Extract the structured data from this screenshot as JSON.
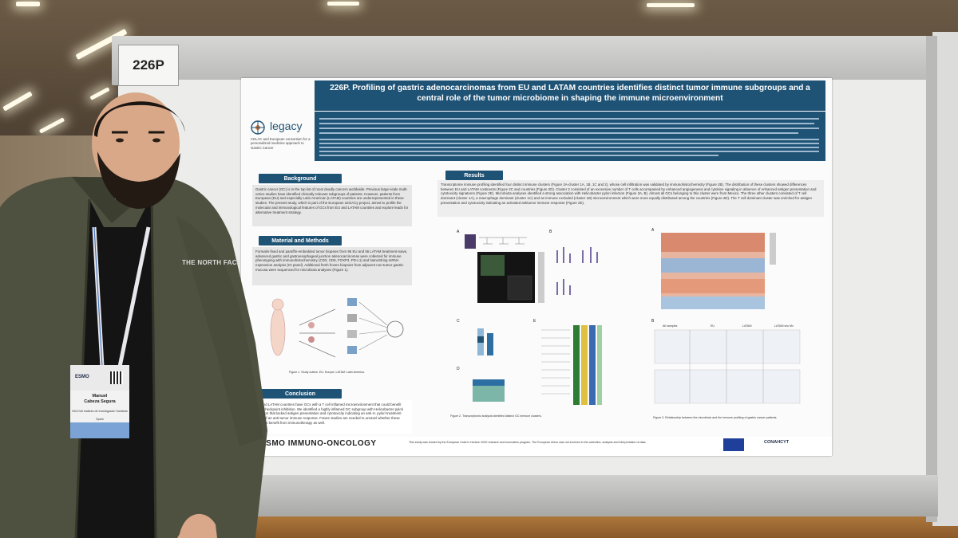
{
  "board": {
    "poster_number": "226P"
  },
  "poster": {
    "title": "226P. Profiling of gastric adenocarcinomas from EU and LATAM countries identifies distinct tumor immune subgroups and a central role of the tumor microbiome in shaping the immune microenvironment",
    "logo_name": "legacy",
    "logo_subtitle": "CELAC and European consortium for a personalized medicine approach to Gastric Cancer",
    "sections": {
      "background": "Background",
      "methods": "Material and Methods",
      "conclusion": "Conclusion",
      "results": "Results"
    },
    "background_text": "Gastric cancer (GC) is in the top list of most deadly cancers worldwide. Previous large-scale multi-omics studies have identified clinically relevant subgroups of patients. However, patients from European (EU) and especially Latin American (LATAM) countries are underrepresented in these studies. The present study, which is part of the European LEGACy project, aimed to profile the molecular and immunological features of GCs from EU and LATAM countries and explore leads for alternative treatment strategy.",
    "methods_text": "Formalin-fixed and paraffin-embedded tumor biopsies from 95 EU and 56 LATAM treatment-naive, advanced gastric and gastroesophageal junction adenocarcinomas were collected for immune phenotyping with immunohistochemistry (CD3, CD8, FOXP3, PD-L1) and NanoString mRNA expression analysis (IO panel). Additional fresh frozen biopsies from adjacent non-tumor gastric mucosa were sequenced for microbiota analyses (Figure 1).",
    "conclusion_text": "EU and LATAM countries have GCs with a T cell inflamed microenvironment that could benefit from checkpoint inhibition. We identified a highly inflamed GC subgroup with Helicobacter pylori infection that lacked antigen presentation and cytotoxicity indicating an anti-H. pylori treatment need of an anti-tumor immune response. Future studies are needed to unravel whether these cancers benefit from immunotherapy as well.",
    "results_text": "Transcriptome immune profiling identified four distinct immune clusters (Figure 2A-cluster 1A, 1B, 1C and 2), whose cell infiltration was validated by immunohistochemistry (Figure 2B). The distribution of these clusters showed differences between EU and LATAM continents (Figure 2C and countries (Figure 2D). Cluster 2 consisted of an excessive number of T cells accompanied by enhanced angiogenesis and cytokine signaling in absence of enhanced antigen presentation and cytotoxicity signatures (Figure 2E). Microbiota analyses identified a strong association with Helicobacter pylori infection (Figure 3A, B). Almost all GCs belonging to this cluster were from Mexico. The three other clusters consisted of T cell dominant (cluster 1A), a macrophage dominant (cluster 1C) and an immune excluded (cluster 1B) microenvironment which were more equally distributed among the countries (Figure 2D). The T cell dominant cluster was enriched for antigen presentation and cytotoxicity indicating an activated antitumor immune response (Figure 2E).",
    "figure1_caption": "Figure 1. Study outline. EU: Europe; LATAM: Latin America.",
    "figure3_panel_labels": [
      "All samples",
      "EU",
      "LATAM",
      "LATAM w/o Mx"
    ],
    "figure2_caption": "Figure 2. Transcriptomic analysis identified distinct GC immune clusters.",
    "figure3_caption": "Figure 3. Relationship between the microbiota and the immune profiling of gastric cancer patients.",
    "footer_funding": "This study was funded by the European Union's Horizon 2020 research and innovation program. The European Union was not involved in the collection, analysis and interpretation of data.",
    "footer_brand": "ESMO IMMUNO-ONCOLOGY",
    "footer_partner": "CONAHCYT"
  },
  "badge": {
    "event": "ESMO",
    "name_first": "Manuel",
    "name_last": "Cabeza Segura",
    "organization": "INCLIVA Instituto de Investigación Sanitaria",
    "country": "Spain"
  },
  "jacket_brand": "THE NORTH FACE",
  "colors": {
    "poster_blue": "#1f5375",
    "jacket": "#4f5140",
    "board": "#ececea"
  }
}
